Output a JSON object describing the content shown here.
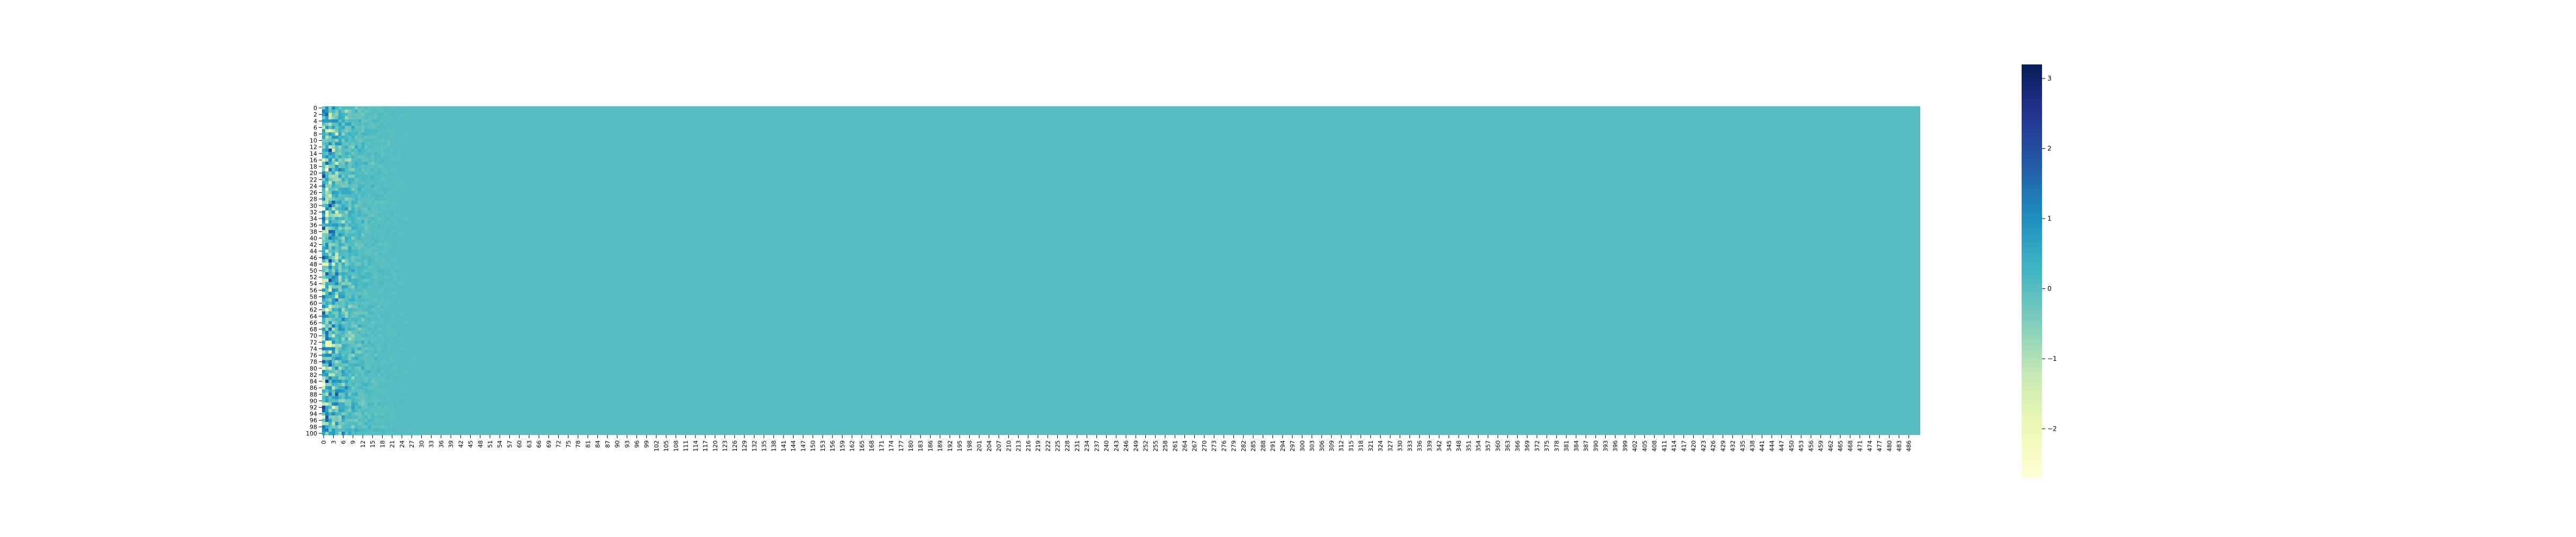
{
  "chart_data": {
    "type": "heatmap",
    "title": "",
    "xlabel": "",
    "ylabel": "",
    "n_rows": 101,
    "n_cols": 490,
    "x_tick_step": 3,
    "y_tick_step": 2,
    "x_tick_labels": [
      "0",
      "3",
      "6",
      "9",
      "12",
      "15",
      "18",
      "21",
      "24",
      "27",
      "30",
      "33",
      "36",
      "39",
      "42",
      "45",
      "48",
      "51",
      "54",
      "57",
      "60",
      "63",
      "66",
      "69",
      "72",
      "75",
      "78",
      "81",
      "84",
      "87",
      "90",
      "93",
      "96",
      "99",
      "102",
      "105",
      "108",
      "111",
      "114",
      "117",
      "120",
      "123",
      "126",
      "129",
      "132",
      "135",
      "138",
      "141",
      "144",
      "147",
      "150",
      "153",
      "156",
      "159",
      "162",
      "165",
      "168",
      "171",
      "174",
      "177",
      "180",
      "183",
      "186",
      "189",
      "192",
      "195",
      "198",
      "201",
      "204",
      "207",
      "210",
      "213",
      "216",
      "219",
      "222",
      "225",
      "228",
      "231",
      "234",
      "237",
      "240",
      "243",
      "246",
      "249",
      "252",
      "255",
      "258",
      "261",
      "264",
      "267",
      "270",
      "273",
      "276",
      "279",
      "282",
      "285",
      "288",
      "291",
      "294",
      "297",
      "300",
      "303",
      "306",
      "309",
      "312",
      "315",
      "318",
      "321",
      "324",
      "327",
      "330",
      "333",
      "336",
      "339",
      "342",
      "345",
      "348",
      "351",
      "354",
      "357",
      "360",
      "363",
      "366",
      "369",
      "372",
      "375",
      "378",
      "381",
      "384",
      "387",
      "390",
      "393",
      "396",
      "399",
      "402",
      "405",
      "408",
      "411",
      "414",
      "417",
      "420",
      "423",
      "426",
      "429",
      "432",
      "435",
      "438",
      "441",
      "444",
      "447",
      "450",
      "453",
      "456",
      "459",
      "462",
      "465",
      "468",
      "471",
      "474",
      "477",
      "480",
      "483",
      "486"
    ],
    "y_tick_labels": [
      "0",
      "2",
      "4",
      "6",
      "8",
      "10",
      "12",
      "14",
      "16",
      "18",
      "20",
      "22",
      "24",
      "26",
      "28",
      "30",
      "32",
      "34",
      "36",
      "38",
      "40",
      "42",
      "44",
      "46",
      "48",
      "50",
      "52",
      "54",
      "56",
      "58",
      "60",
      "62",
      "64",
      "66",
      "68",
      "70",
      "72",
      "74",
      "76",
      "78",
      "80",
      "82",
      "84",
      "86",
      "88",
      "90",
      "92",
      "94",
      "96",
      "98",
      "100"
    ],
    "value_pattern": {
      "background_value": 0.0,
      "active_columns": [
        0,
        30
      ],
      "max_amplitude": 1.2,
      "note_dense_region": "values vary strongly in first ~30 columns and decay toward 0; remaining columns are ~0"
    },
    "colorbar": {
      "colormap": "YlGnBu",
      "vmin": -2.7,
      "vmax": 3.2,
      "ticks": [
        {
          "value": 3,
          "label": "3"
        },
        {
          "value": 2,
          "label": "2"
        },
        {
          "value": 1,
          "label": "1"
        },
        {
          "value": 0,
          "label": "0"
        },
        {
          "value": -1,
          "label": "−1"
        },
        {
          "value": -2,
          "label": "−2"
        }
      ]
    },
    "grid": false,
    "legend": "none"
  }
}
